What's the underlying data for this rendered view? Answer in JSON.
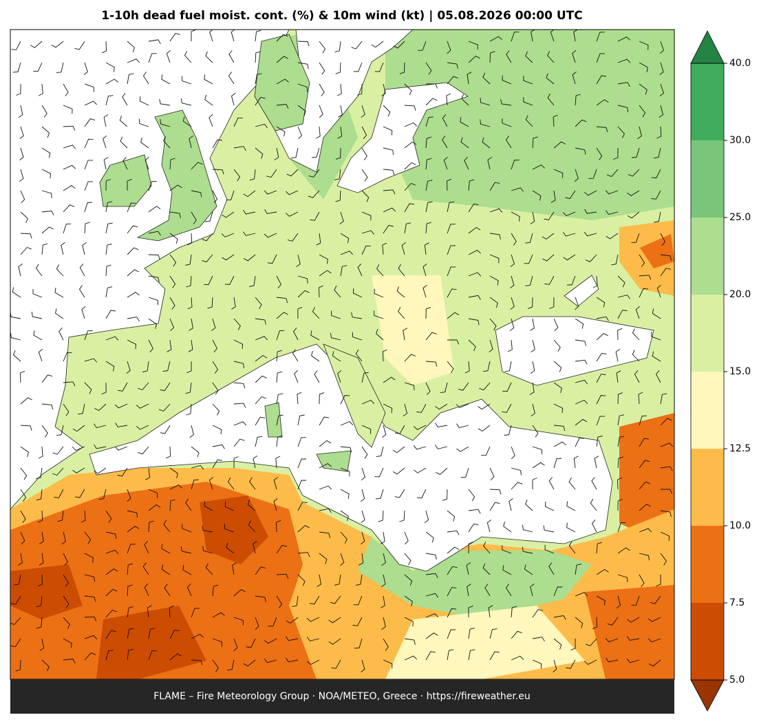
{
  "title": "1-10h dead fuel moist. cont. (%) & 10m wind (kt)  |  05.08.2026 00:00 UTC",
  "footer": "FLAME – Fire Meteorology Group · NOA/METEO, Greece · https://fireweather.eu",
  "colorbar": {
    "ticks": [
      {
        "value": 5,
        "label": "5.0"
      },
      {
        "value": 7.5,
        "label": "7.5"
      },
      {
        "value": 10,
        "label": "10.0"
      },
      {
        "value": 12.5,
        "label": "12.5"
      },
      {
        "value": 15,
        "label": "15.0"
      },
      {
        "value": 20,
        "label": "20.0"
      },
      {
        "value": 25,
        "label": "25.0"
      },
      {
        "value": 30,
        "label": "30.0"
      },
      {
        "value": 40,
        "label": "40.0"
      }
    ],
    "colors": [
      "#cc4c02",
      "#ec7014",
      "#fdbb4a",
      "#fff7bc",
      "#d9f0a3",
      "#addd8e",
      "#78c679",
      "#41ab5d"
    ],
    "under_color": "#993404",
    "over_color": "#238443"
  }
}
